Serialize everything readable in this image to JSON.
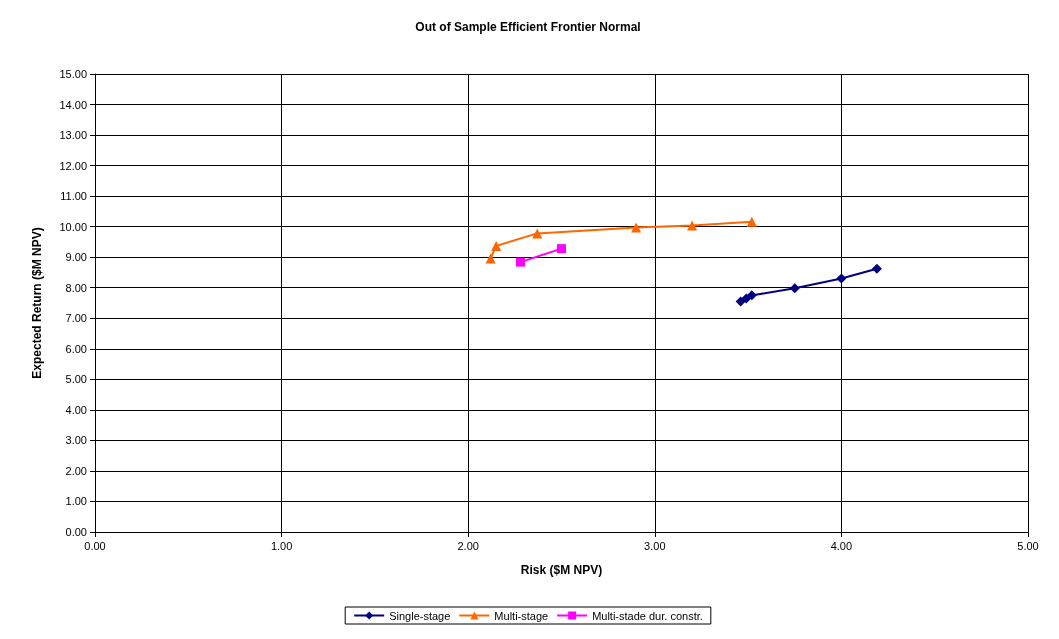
{
  "chart_data": {
    "type": "line",
    "title": "Out of Sample Efficient Frontier Normal",
    "xlabel": "Risk ($M NPV)",
    "ylabel": "Expected Return ($M NPV)",
    "xlim": [
      0,
      5
    ],
    "xticks": [
      {
        "value": 0,
        "label": "0.00"
      },
      {
        "value": 1,
        "label": "1.00"
      },
      {
        "value": 2,
        "label": "2.00"
      },
      {
        "value": 3,
        "label": "3.00"
      },
      {
        "value": 4,
        "label": "4.00"
      },
      {
        "value": 5,
        "label": "5.00"
      }
    ],
    "ylim": [
      0,
      15
    ],
    "yticks": [
      {
        "value": 0,
        "label": "0.00"
      },
      {
        "value": 1,
        "label": "1.00"
      },
      {
        "value": 2,
        "label": "2.00"
      },
      {
        "value": 3,
        "label": "3.00"
      },
      {
        "value": 4,
        "label": "4.00"
      },
      {
        "value": 5,
        "label": "5.00"
      },
      {
        "value": 6,
        "label": "6.00"
      },
      {
        "value": 7,
        "label": "7.00"
      },
      {
        "value": 8,
        "label": "8.00"
      },
      {
        "value": 9,
        "label": "9.00"
      },
      {
        "value": 10,
        "label": "10.00"
      },
      {
        "value": 11,
        "label": "11.00"
      },
      {
        "value": 12,
        "label": "12.00"
      },
      {
        "value": 13,
        "label": "13.00"
      },
      {
        "value": 14,
        "label": "14.00"
      },
      {
        "value": 15,
        "label": "15.00"
      }
    ],
    "grid": true,
    "legend": "bottom",
    "line_style": "solid",
    "series": [
      {
        "name": "Single-stage",
        "color": "#000080",
        "marker": "diamond",
        "x": [
          3.46,
          3.49,
          3.52,
          3.75,
          4.0,
          4.19
        ],
        "values": [
          7.55,
          7.65,
          7.75,
          7.98,
          8.3,
          8.62
        ]
      },
      {
        "name": "Multi-stage",
        "color": "#ff6600",
        "marker": "triangle",
        "x": [
          2.12,
          2.15,
          2.37,
          2.9,
          3.2,
          3.52
        ],
        "values": [
          8.96,
          9.37,
          9.78,
          9.97,
          10.04,
          10.16
        ]
      },
      {
        "name": "Multi-stade dur. constr.",
        "color": "#ff00ff",
        "marker": "square",
        "x": [
          2.28,
          2.5
        ],
        "values": [
          8.84,
          9.28
        ]
      }
    ]
  }
}
